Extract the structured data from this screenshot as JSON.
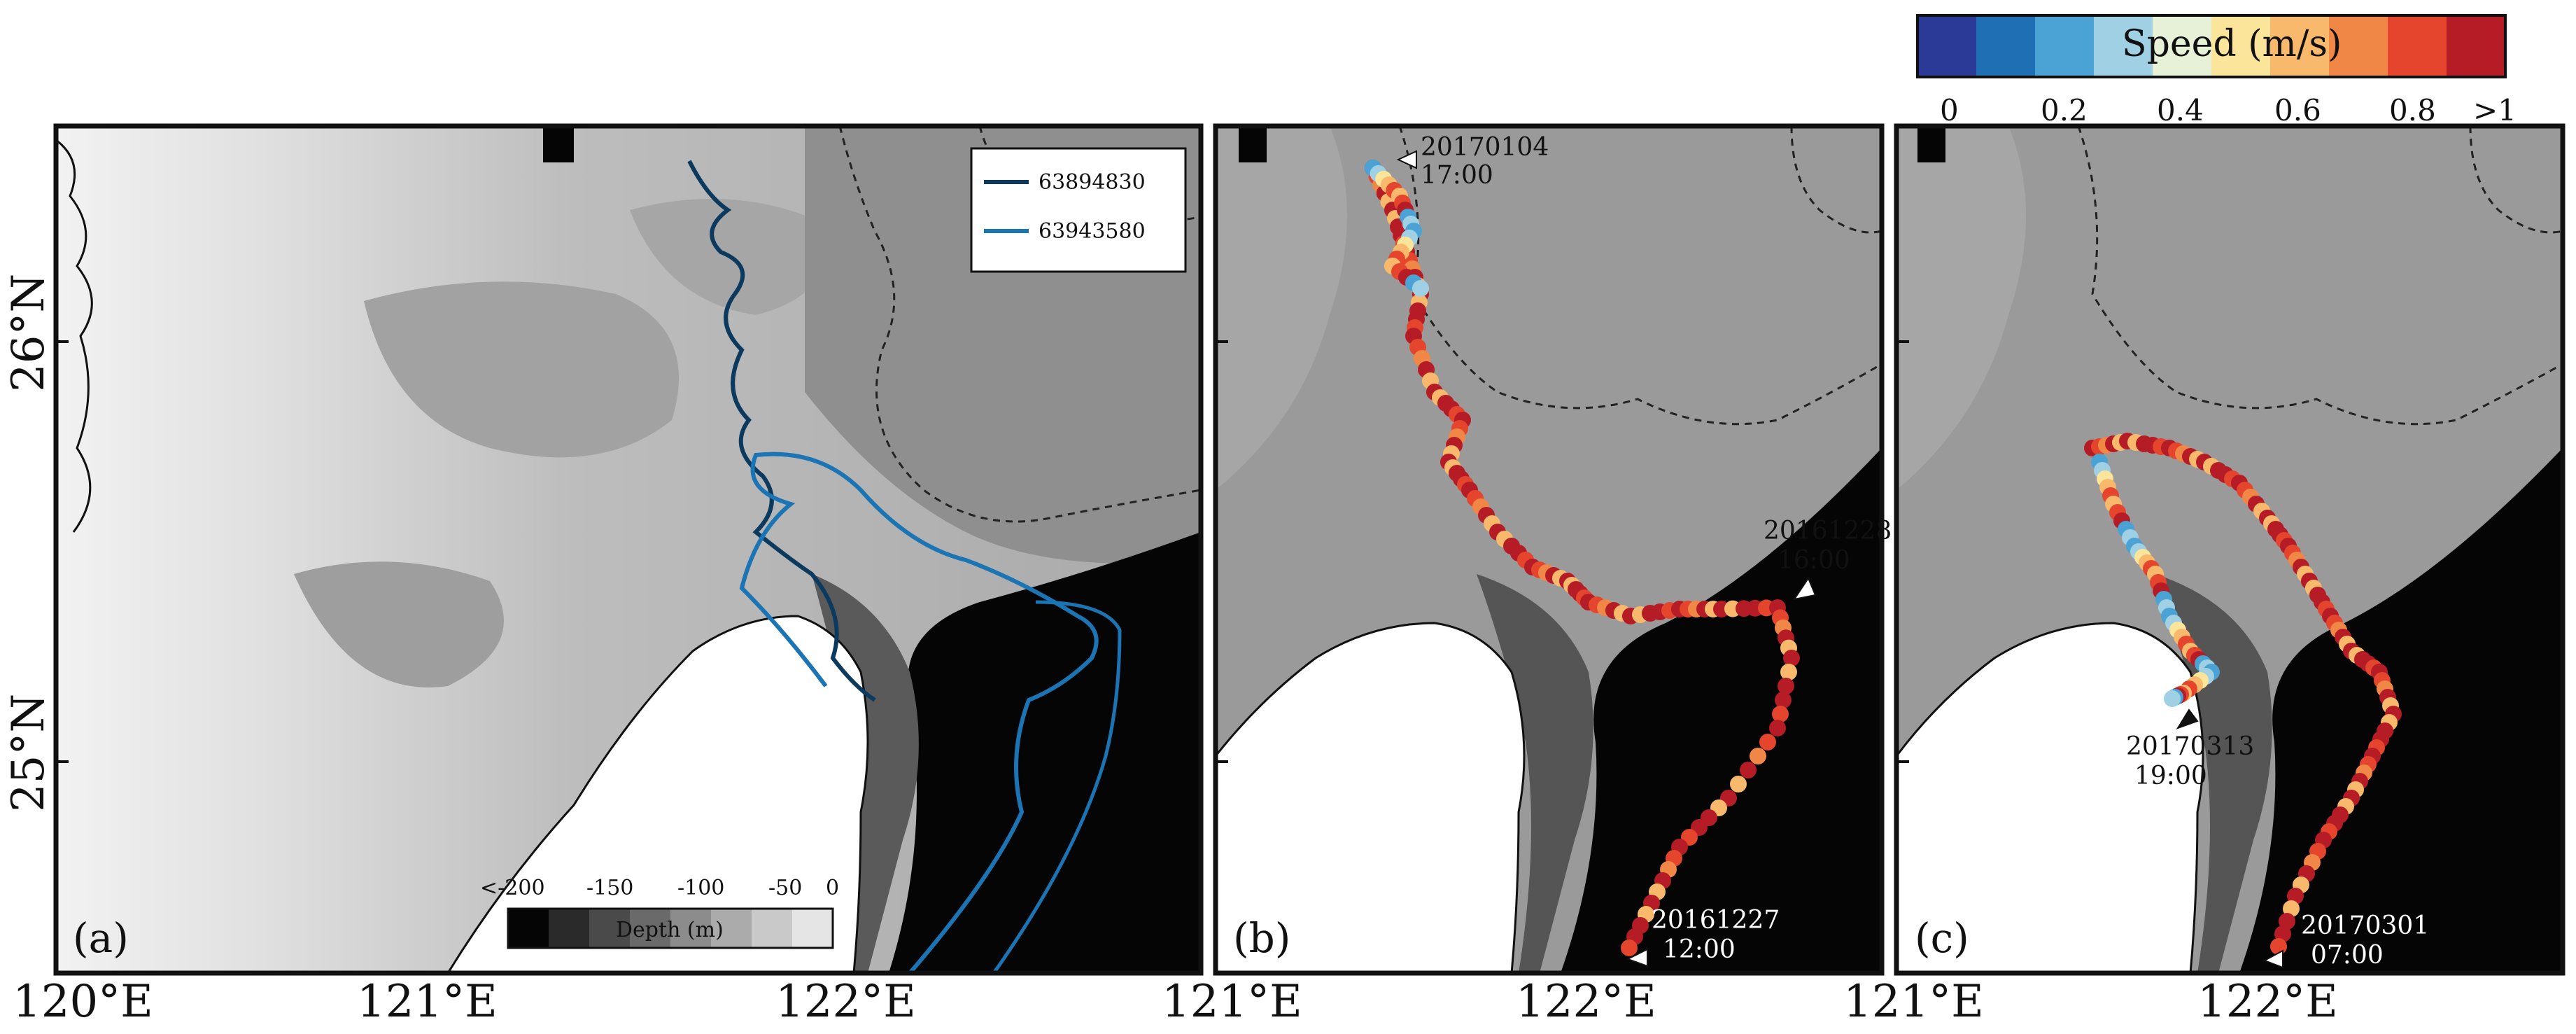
{
  "colorbar": {
    "title": "Speed (m/s)",
    "ticks": [
      "0",
      "0.2",
      "0.4",
      "0.6",
      "0.8",
      ">1"
    ],
    "colors": [
      "#2b3a96",
      "#1f6fb4",
      "#4aa3d4",
      "#9fd0e4",
      "#e6f1d8",
      "#fbe59a",
      "#f9b96c",
      "#f08747",
      "#e4452c",
      "#b51c26"
    ]
  },
  "panel_a": {
    "label": "(a)",
    "legend": [
      {
        "name": "63894830",
        "color": "#0b3a5e"
      },
      {
        "name": "63943580",
        "color": "#1b74b3"
      }
    ],
    "depth_bar": {
      "title": "Depth (m)",
      "ticks": [
        "<-200",
        "-150",
        "-100",
        "-50",
        "0"
      ]
    },
    "x_ticks": [
      "120°E",
      "121°E",
      "122°E"
    ],
    "y_ticks": [
      "25°N",
      "26°N"
    ]
  },
  "panel_b": {
    "label": "(b)",
    "annotations": [
      {
        "date": "20170104",
        "time": "17:00"
      },
      {
        "date": "20161228",
        "time": "16:00"
      },
      {
        "date": "20161227",
        "time": "12:00"
      }
    ],
    "x_ticks": [
      "121°E",
      "122°E"
    ]
  },
  "panel_c": {
    "label": "(c)",
    "annotations": [
      {
        "date": "20170313",
        "time": "19:00"
      },
      {
        "date": "20170301",
        "time": "07:00"
      }
    ],
    "x_ticks": [
      "121°E",
      "122°E"
    ]
  },
  "colors": {
    "land": "#ffffff",
    "shallow": "#d6d6d6",
    "mid": "#a8a8a8",
    "deep": "#5c5c5c",
    "deepest": "#050505"
  }
}
